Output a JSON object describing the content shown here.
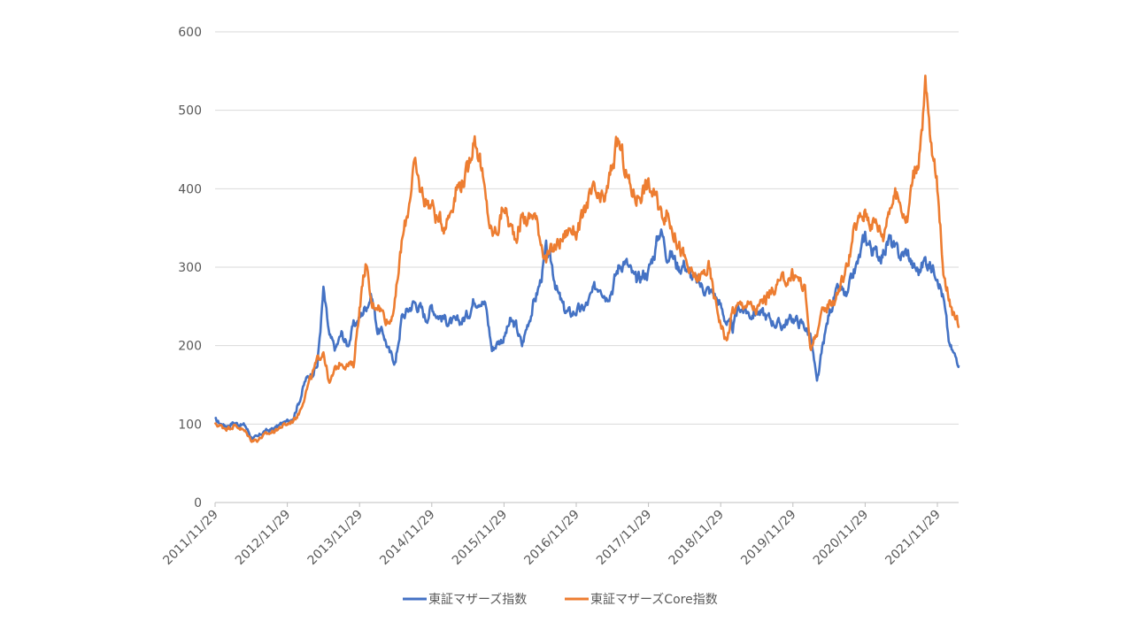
{
  "chart_data": {
    "type": "line",
    "title": "",
    "xlabel": "",
    "ylabel": "",
    "ylim": [
      0,
      600
    ],
    "yticks": [
      "0",
      "100",
      "200",
      "300",
      "400",
      "500",
      "600"
    ],
    "grid": true,
    "legend_position": "bottom",
    "x_start": "2011/11/29",
    "x_step": "1 month",
    "xticks": [
      "2011/11/29",
      "2012/11/29",
      "2013/11/29",
      "2014/11/29",
      "2015/11/29",
      "2016/11/29",
      "2017/11/29",
      "2018/11/29",
      "2019/11/29",
      "2020/11/29",
      "2021/11/29"
    ],
    "series": [
      {
        "name": "東証マザーズ指数",
        "color": "#4472C4",
        "values": [
          105,
          100,
          98,
          102,
          100,
          98,
          84,
          82,
          90,
          92,
          95,
          100,
          103,
          110,
          130,
          155,
          165,
          175,
          270,
          210,
          195,
          215,
          200,
          225,
          235,
          250,
          265,
          220,
          215,
          190,
          180,
          235,
          245,
          255,
          250,
          235,
          250,
          240,
          235,
          230,
          228,
          232,
          240,
          258,
          262,
          250,
          195,
          205,
          210,
          230,
          225,
          200,
          230,
          255,
          280,
          320,
          300,
          265,
          245,
          240,
          245,
          245,
          255,
          270,
          280,
          265,
          275,
          300,
          310,
          295,
          280,
          290,
          295,
          320,
          350,
          320,
          315,
          300,
          305,
          290,
          280,
          275,
          270,
          265,
          250,
          230,
          220,
          250,
          245,
          240,
          245,
          240,
          235,
          230,
          225,
          230,
          235,
          230,
          225,
          210,
          150,
          200,
          240,
          265,
          270,
          260,
          290,
          310,
          340,
          325,
          315,
          320,
          335,
          320,
          315,
          320,
          300,
          295,
          310,
          300,
          295,
          260,
          200,
          185,
          175
        ]
      },
      {
        "name": "東証マザーズCore指数",
        "color": "#ED7D31",
        "values": [
          100,
          97,
          95,
          98,
          96,
          90,
          80,
          80,
          85,
          88,
          92,
          97,
          100,
          105,
          115,
          140,
          160,
          180,
          195,
          150,
          170,
          180,
          175,
          175,
          250,
          305,
          250,
          255,
          240,
          230,
          260,
          330,
          370,
          430,
          400,
          385,
          380,
          360,
          355,
          370,
          400,
          410,
          420,
          470,
          440,
          380,
          340,
          350,
          380,
          350,
          340,
          365,
          360,
          370,
          340,
          310,
          320,
          330,
          340,
          350,
          345,
          360,
          385,
          395,
          380,
          390,
          430,
          460,
          430,
          400,
          390,
          400,
          405,
          390,
          370,
          370,
          350,
          330,
          310,
          290,
          285,
          290,
          300,
          260,
          230,
          205,
          245,
          250,
          255,
          250,
          245,
          255,
          265,
          275,
          280,
          285,
          290,
          285,
          270,
          195,
          220,
          240,
          255,
          260,
          280,
          300,
          340,
          360,
          370,
          360,
          355,
          340,
          380,
          390,
          380,
          360,
          420,
          440,
          530,
          450,
          400,
          300,
          260,
          230,
          225
        ]
      }
    ]
  }
}
